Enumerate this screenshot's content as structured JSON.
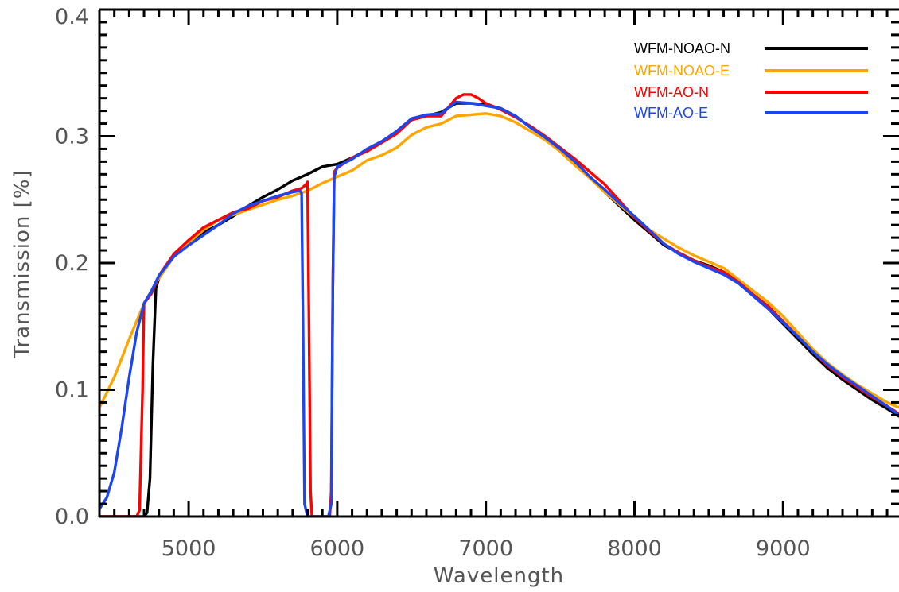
{
  "chart_data": {
    "type": "line",
    "title": "",
    "xlabel": "Wavelength",
    "ylabel": "Transmission  [%]",
    "xlim": [
      4400,
      9780
    ],
    "ylim": [
      0.0,
      0.4
    ],
    "x_ticks": [
      5000,
      6000,
      7000,
      8000,
      9000
    ],
    "x_tick_labels": [
      "5000",
      "6000",
      "7000",
      "8000",
      "9000"
    ],
    "y_ticks": [
      0.0,
      0.1,
      0.2,
      0.3,
      0.4
    ],
    "y_tick_labels": [
      "0.0",
      "0.1",
      "0.2",
      "0.3",
      "0.4"
    ],
    "grid": false,
    "legend_position": "top-right",
    "series": [
      {
        "name": "WFM-NOAO-N",
        "color": "#000000",
        "x": [
          4400,
          4700,
          4720,
          4740,
          4760,
          4780,
          4800,
          4900,
          5000,
          5100,
          5200,
          5300,
          5400,
          5500,
          5600,
          5700,
          5800,
          5900,
          6000,
          6100,
          6200,
          6300,
          6400,
          6500,
          6600,
          6700,
          6800,
          6900,
          7000,
          7100,
          7200,
          7300,
          7400,
          7500,
          7600,
          7700,
          7800,
          7900,
          8000,
          8100,
          8200,
          8300,
          8400,
          8500,
          8600,
          8700,
          8800,
          8900,
          9000,
          9100,
          9200,
          9300,
          9400,
          9500,
          9600,
          9700,
          9780
        ],
        "y": [
          0.0,
          0.0,
          0.003,
          0.03,
          0.12,
          0.18,
          0.188,
          0.205,
          0.215,
          0.224,
          0.23,
          0.237,
          0.245,
          0.252,
          0.258,
          0.265,
          0.27,
          0.276,
          0.278,
          0.283,
          0.289,
          0.296,
          0.303,
          0.313,
          0.316,
          0.319,
          0.326,
          0.326,
          0.325,
          0.322,
          0.316,
          0.307,
          0.299,
          0.289,
          0.279,
          0.268,
          0.256,
          0.245,
          0.234,
          0.224,
          0.214,
          0.208,
          0.202,
          0.198,
          0.193,
          0.184,
          0.174,
          0.164,
          0.152,
          0.14,
          0.128,
          0.117,
          0.108,
          0.1,
          0.092,
          0.085,
          0.079
        ]
      },
      {
        "name": "WFM-NOAO-E",
        "color": "#ffa500",
        "x": [
          4400,
          4500,
          4600,
          4700,
          4800,
          4900,
          5000,
          5100,
          5200,
          5300,
          5400,
          5500,
          5600,
          5700,
          5800,
          5900,
          6000,
          6100,
          6200,
          6300,
          6400,
          6500,
          6600,
          6700,
          6800,
          6900,
          7000,
          7100,
          7200,
          7300,
          7400,
          7500,
          7600,
          7700,
          7800,
          7900,
          8000,
          8100,
          8200,
          8300,
          8400,
          8500,
          8600,
          8700,
          8800,
          8900,
          9000,
          9100,
          9200,
          9300,
          9400,
          9500,
          9600,
          9700,
          9780
        ],
        "y": [
          0.086,
          0.11,
          0.14,
          0.168,
          0.188,
          0.205,
          0.216,
          0.226,
          0.234,
          0.238,
          0.242,
          0.246,
          0.25,
          0.253,
          0.257,
          0.263,
          0.268,
          0.273,
          0.281,
          0.285,
          0.291,
          0.301,
          0.307,
          0.31,
          0.316,
          0.317,
          0.318,
          0.316,
          0.311,
          0.304,
          0.297,
          0.288,
          0.277,
          0.267,
          0.256,
          0.246,
          0.236,
          0.226,
          0.219,
          0.212,
          0.206,
          0.201,
          0.196,
          0.187,
          0.178,
          0.169,
          0.158,
          0.145,
          0.132,
          0.121,
          0.112,
          0.104,
          0.097,
          0.09,
          0.086
        ]
      },
      {
        "name": "WFM-AO-N",
        "color": "#ff0000",
        "x": [
          4400,
          4650,
          4670,
          4690,
          4700,
          4750,
          4800,
          4900,
          5000,
          5100,
          5200,
          5300,
          5400,
          5500,
          5600,
          5700,
          5760,
          5790,
          5800,
          5810,
          5820,
          5830,
          5950,
          5960,
          5970,
          5980,
          6000,
          6100,
          6200,
          6300,
          6400,
          6500,
          6600,
          6700,
          6800,
          6850,
          6900,
          6950,
          7000,
          7100,
          7200,
          7300,
          7400,
          7500,
          7600,
          7700,
          7800,
          7900,
          8000,
          8100,
          8200,
          8300,
          8400,
          8500,
          8600,
          8700,
          8800,
          8900,
          9000,
          9100,
          9200,
          9300,
          9400,
          9500,
          9600,
          9700,
          9780
        ],
        "y": [
          0.0,
          0.0,
          0.005,
          0.1,
          0.168,
          0.176,
          0.19,
          0.207,
          0.218,
          0.228,
          0.234,
          0.24,
          0.243,
          0.249,
          0.252,
          0.257,
          0.259,
          0.262,
          0.264,
          0.15,
          0.02,
          0.0,
          0.0,
          0.02,
          0.18,
          0.272,
          0.275,
          0.283,
          0.288,
          0.295,
          0.302,
          0.313,
          0.316,
          0.316,
          0.33,
          0.333,
          0.333,
          0.33,
          0.326,
          0.321,
          0.315,
          0.308,
          0.3,
          0.291,
          0.282,
          0.272,
          0.262,
          0.249,
          0.236,
          0.225,
          0.215,
          0.208,
          0.202,
          0.197,
          0.193,
          0.185,
          0.175,
          0.166,
          0.154,
          0.142,
          0.13,
          0.119,
          0.11,
          0.102,
          0.094,
          0.087,
          0.081
        ]
      },
      {
        "name": "WFM-AO-E",
        "color": "#1e46f0",
        "x": [
          4400,
          4450,
          4500,
          4550,
          4600,
          4650,
          4700,
          4750,
          4800,
          4900,
          5000,
          5100,
          5200,
          5300,
          5400,
          5500,
          5600,
          5700,
          5750,
          5760,
          5770,
          5780,
          5800,
          5940,
          5960,
          5970,
          5980,
          5990,
          6000,
          6100,
          6200,
          6300,
          6400,
          6500,
          6600,
          6700,
          6800,
          6900,
          7000,
          7100,
          7200,
          7300,
          7400,
          7500,
          7600,
          7700,
          7800,
          7900,
          8000,
          8100,
          8200,
          8300,
          8400,
          8500,
          8600,
          8700,
          8800,
          8900,
          9000,
          9100,
          9200,
          9300,
          9400,
          9500,
          9600,
          9700,
          9780
        ],
        "y": [
          0.006,
          0.015,
          0.035,
          0.07,
          0.11,
          0.145,
          0.168,
          0.178,
          0.19,
          0.205,
          0.214,
          0.222,
          0.23,
          0.239,
          0.245,
          0.249,
          0.253,
          0.256,
          0.257,
          0.255,
          0.15,
          0.01,
          0.0,
          0.0,
          0.01,
          0.18,
          0.268,
          0.272,
          0.276,
          0.282,
          0.29,
          0.296,
          0.304,
          0.314,
          0.317,
          0.318,
          0.327,
          0.326,
          0.324,
          0.322,
          0.316,
          0.307,
          0.299,
          0.29,
          0.28,
          0.268,
          0.258,
          0.247,
          0.237,
          0.226,
          0.215,
          0.207,
          0.201,
          0.196,
          0.191,
          0.184,
          0.174,
          0.164,
          0.153,
          0.142,
          0.13,
          0.12,
          0.111,
          0.103,
          0.095,
          0.087,
          0.08
        ]
      }
    ]
  }
}
